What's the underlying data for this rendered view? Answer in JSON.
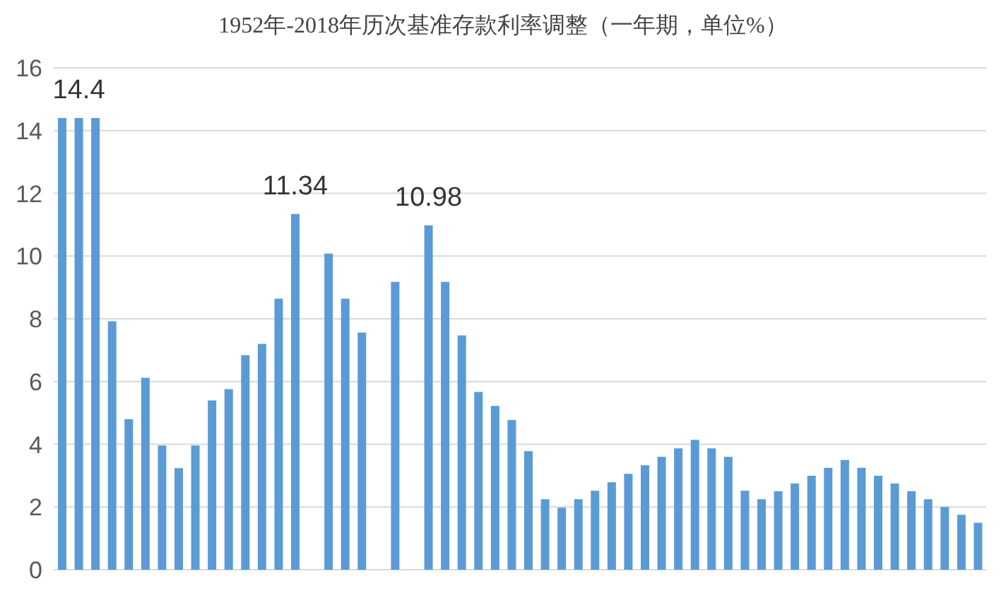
{
  "chart_data": {
    "type": "bar",
    "title": "1952年-2018年历次基准存款利率调整（一年期，单位%）",
    "categories": [
      null,
      null,
      null,
      null,
      null,
      null,
      null,
      null,
      null,
      null,
      null,
      null,
      null,
      null,
      null,
      null,
      null,
      null,
      null,
      null,
      null,
      null,
      null,
      null,
      null,
      null,
      null,
      null,
      null,
      null,
      null,
      null,
      null,
      null,
      null,
      null,
      null,
      null,
      null,
      null,
      null,
      null,
      null,
      null,
      null,
      null,
      null,
      null,
      null,
      null,
      null,
      null,
      null,
      null,
      null,
      null
    ],
    "values": [
      14.4,
      14.4,
      14.4,
      7.92,
      4.8,
      6.12,
      3.96,
      3.24,
      3.96,
      5.4,
      5.76,
      6.84,
      7.2,
      8.64,
      11.34,
      null,
      10.08,
      8.64,
      7.56,
      null,
      9.18,
      null,
      10.98,
      9.18,
      7.47,
      5.67,
      5.22,
      4.77,
      3.78,
      2.25,
      1.98,
      2.25,
      2.52,
      2.79,
      3.06,
      3.33,
      3.6,
      3.87,
      4.14,
      3.87,
      3.6,
      2.52,
      2.25,
      2.5,
      2.75,
      3.0,
      3.25,
      3.5,
      3.25,
      3.0,
      2.75,
      2.5,
      2.25,
      2.0,
      1.75,
      1.5
    ],
    "value_labels": [
      null,
      "14.4",
      null,
      null,
      null,
      null,
      null,
      null,
      null,
      null,
      null,
      null,
      null,
      null,
      "11.34",
      null,
      null,
      null,
      null,
      null,
      null,
      null,
      "10.98",
      null,
      null,
      null,
      null,
      null,
      null,
      null,
      null,
      null,
      null,
      null,
      null,
      null,
      null,
      null,
      null,
      null,
      null,
      null,
      null,
      null,
      null,
      null,
      null,
      null,
      null,
      null,
      null,
      null,
      null,
      null,
      null,
      null
    ],
    "color": "#5b9bd5",
    "ylim": [
      0,
      16
    ],
    "yticks": [
      0,
      2,
      4,
      6,
      8,
      10,
      12,
      14,
      16
    ],
    "grid": "y",
    "tick_labels": "y"
  }
}
